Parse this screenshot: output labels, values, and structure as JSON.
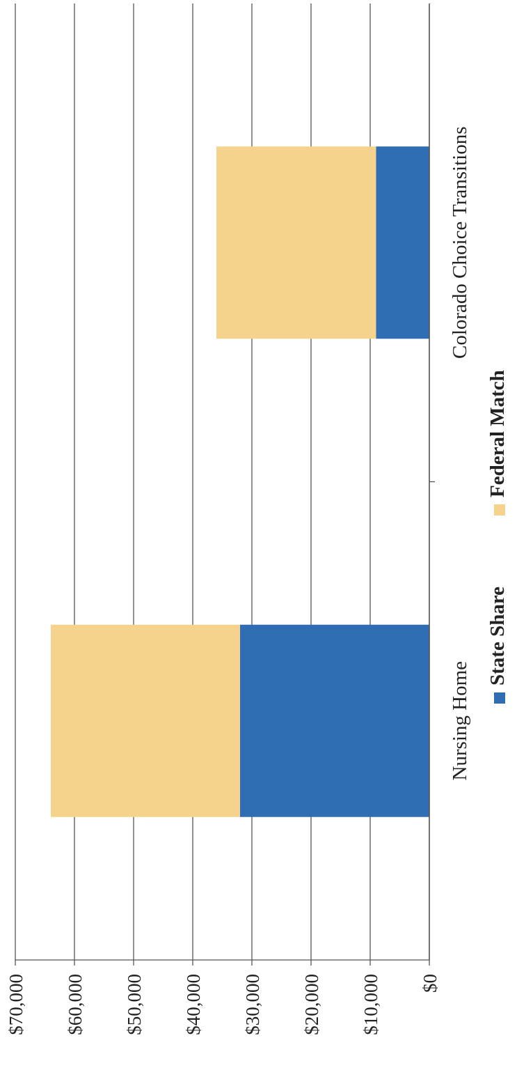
{
  "chart_data": {
    "type": "bar",
    "stacked": true,
    "orientation": "rotated-90-ccw",
    "categories": [
      "Nursing Home",
      "Colorado Choice Transitions"
    ],
    "series": [
      {
        "name": "State Share",
        "values": [
          32000,
          9000
        ]
      },
      {
        "name": "Federal Match",
        "values": [
          32000,
          27000
        ]
      }
    ],
    "colors": {
      "State Share": "#2f6eb3",
      "Federal Match": "#f5d38d"
    },
    "y_ticks": [
      "$0",
      "$10,000",
      "$20,000",
      "$30,000",
      "$40,000",
      "$50,000",
      "$60,000",
      "$70,000"
    ],
    "ylim": [
      0,
      70000
    ],
    "grid": true,
    "legend_position": "bottom",
    "title": "",
    "xlabel": "",
    "ylabel": ""
  }
}
